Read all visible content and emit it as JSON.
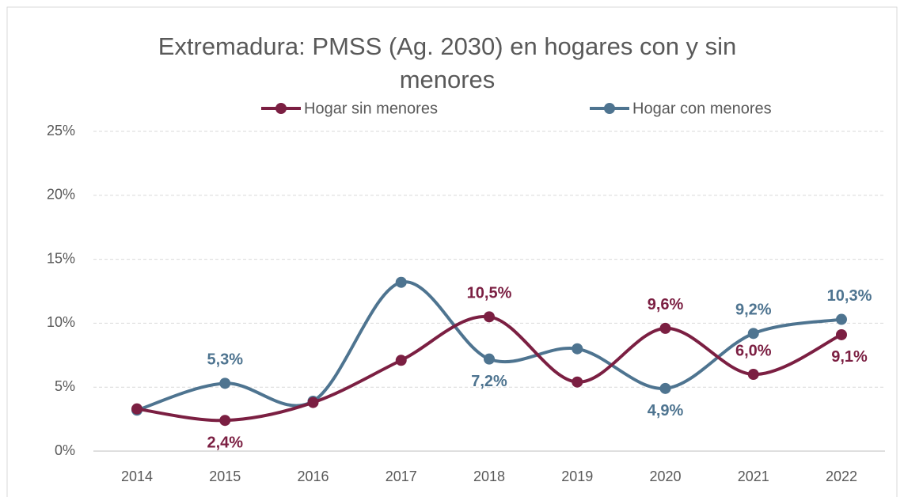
{
  "chart_data": {
    "type": "line",
    "title": "Extremadura: PMSS (Ag. 2030) en hogares con y sin menores",
    "categories": [
      "2014",
      "2015",
      "2016",
      "2017",
      "2018",
      "2019",
      "2020",
      "2021",
      "2022"
    ],
    "series": [
      {
        "name": "Hogar sin menores",
        "color": "#7b1f42",
        "values": [
          3.3,
          2.4,
          3.8,
          7.1,
          10.5,
          5.4,
          9.6,
          6.0,
          9.1
        ],
        "value_labels": [
          null,
          "2,4%",
          null,
          null,
          "10,5%",
          null,
          "9,6%",
          "6,0%",
          "9,1%"
        ]
      },
      {
        "name": "Hogar con menores",
        "color": "#4e7490",
        "values": [
          3.2,
          5.3,
          3.9,
          13.2,
          7.2,
          8.0,
          4.9,
          9.2,
          10.3
        ],
        "value_labels": [
          null,
          "5,3%",
          null,
          null,
          "7,2%",
          null,
          "4,9%",
          "9,2%",
          "10,3%"
        ]
      }
    ],
    "ylim": [
      0,
      25
    ],
    "yticks": [
      {
        "value": 0,
        "label": "0%"
      },
      {
        "value": 5,
        "label": "5%"
      },
      {
        "value": 10,
        "label": "10%"
      },
      {
        "value": 15,
        "label": "15%"
      },
      {
        "value": 20,
        "label": "20%"
      },
      {
        "value": 25,
        "label": "25%"
      }
    ],
    "grid": true,
    "smooth": true,
    "legend": "top"
  }
}
